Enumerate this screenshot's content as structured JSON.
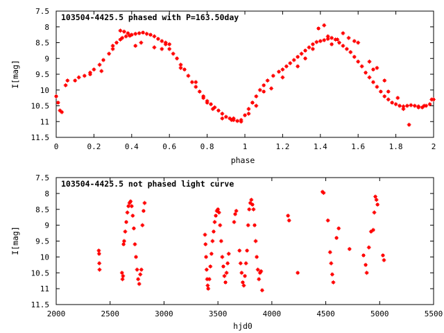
{
  "chart_data": [
    {
      "type": "scatter",
      "title": "103504-4425.5 phased with P=163.50day",
      "xlabel": "phase",
      "ylabel": "I[mag]",
      "xlim": [
        0,
        2
      ],
      "ylim": [
        11.5,
        7.5
      ],
      "y_inverted": true,
      "xticks": [
        "0",
        "0.2",
        "0.4",
        "0.6",
        "0.8",
        "1",
        "1.2",
        "1.4",
        "1.6",
        "1.8",
        "2"
      ],
      "yticks": [
        "7.5",
        "8",
        "8.5",
        "9",
        "9.5",
        "10",
        "10.5",
        "11",
        "11.5"
      ],
      "marker_color": "#ff0000",
      "series": [
        {
          "x": [
            0.0,
            0.01,
            0.02,
            0.03,
            0.05,
            0.06,
            0.1,
            0.12,
            0.15,
            0.18,
            0.2,
            0.23,
            0.25,
            0.28,
            0.3,
            0.32,
            0.34,
            0.35,
            0.37,
            0.39,
            0.4,
            0.42,
            0.44,
            0.46,
            0.48,
            0.5,
            0.52,
            0.54,
            0.56,
            0.58,
            0.6,
            0.62,
            0.64,
            0.66,
            0.68,
            0.7,
            0.72,
            0.74,
            0.76,
            0.78,
            0.8,
            0.82,
            0.84,
            0.86,
            0.88,
            0.9,
            0.92,
            0.94,
            0.96,
            0.98,
            1.0,
            1.02,
            1.04,
            1.06,
            1.08,
            1.1,
            1.12,
            1.15,
            1.18,
            1.2,
            1.22,
            1.24,
            1.26,
            1.28,
            1.3,
            1.32,
            1.34,
            1.36,
            1.38,
            1.4,
            1.42,
            1.44,
            1.46,
            1.48,
            1.5,
            1.52,
            1.54,
            1.56,
            1.58,
            1.6,
            1.62,
            1.64,
            1.66,
            1.68,
            1.7,
            1.72,
            1.74,
            1.76,
            1.78,
            1.8,
            1.82,
            1.84,
            1.86,
            1.88,
            1.9,
            1.92,
            1.94,
            1.96,
            1.98,
            2.0,
            0.34,
            0.36,
            0.38,
            0.42,
            0.45,
            0.52,
            0.56,
            0.6,
            0.74,
            0.78,
            0.8,
            0.83,
            0.88,
            0.93,
            0.98,
            1.04,
            1.1,
            1.14,
            1.2,
            1.28,
            1.36,
            1.39,
            1.42,
            1.44,
            1.46,
            1.49,
            1.55,
            1.58,
            1.6,
            1.66,
            1.7,
            1.76,
            1.81,
            1.87,
            1.92,
            0.3,
            0.24,
            0.18,
            0.58,
            0.66,
            0.94,
            1.02,
            1.06,
            1.32,
            1.52,
            1.68,
            1.74,
            1.84,
            1.95,
            1.99
          ],
          "y": [
            10.2,
            10.4,
            10.65,
            10.7,
            9.85,
            9.7,
            9.7,
            9.6,
            9.55,
            9.45,
            9.35,
            9.2,
            9.05,
            8.85,
            8.7,
            8.5,
            8.4,
            8.35,
            8.3,
            8.28,
            8.25,
            8.22,
            8.2,
            8.18,
            8.22,
            8.25,
            8.3,
            8.38,
            8.45,
            8.55,
            8.7,
            8.85,
            9.0,
            9.2,
            9.35,
            9.55,
            9.75,
            9.9,
            10.05,
            10.2,
            10.35,
            10.45,
            10.55,
            10.65,
            10.75,
            10.85,
            10.9,
            10.95,
            10.98,
            10.95,
            10.8,
            10.6,
            10.4,
            10.2,
            10.0,
            9.85,
            9.7,
            9.55,
            9.42,
            9.35,
            9.25,
            9.15,
            9.05,
            8.95,
            8.85,
            8.75,
            8.65,
            8.55,
            8.48,
            8.45,
            8.42,
            8.38,
            8.35,
            8.4,
            8.5,
            8.6,
            8.7,
            8.8,
            8.95,
            9.1,
            9.25,
            9.45,
            9.6,
            9.75,
            9.9,
            10.05,
            10.2,
            10.3,
            10.4,
            10.45,
            10.5,
            10.52,
            10.5,
            10.48,
            10.5,
            10.52,
            10.55,
            10.5,
            10.45,
            10.3,
            8.12,
            8.15,
            8.2,
            8.6,
            8.5,
            8.65,
            8.7,
            8.55,
            9.75,
            10.25,
            10.4,
            10.6,
            10.9,
            10.95,
            11.0,
            10.4,
            10.05,
            9.95,
            9.6,
            9.25,
            8.7,
            8.05,
            7.95,
            8.3,
            8.55,
            8.4,
            8.35,
            8.45,
            8.5,
            9.1,
            9.3,
            10.05,
            10.25,
            11.1,
            10.55,
            8.6,
            9.4,
            9.5,
            8.5,
            9.3,
            10.9,
            10.75,
            10.5,
            9.0,
            8.2,
            9.35,
            9.7,
            10.6,
            10.5,
            10.3
          ]
        }
      ]
    },
    {
      "type": "scatter",
      "title": "103504-4425.5 not phased light curve",
      "xlabel": "hjd0",
      "ylabel": "I[mag]",
      "xlim": [
        2000,
        5500
      ],
      "ylim": [
        11.5,
        7.5
      ],
      "y_inverted": true,
      "xticks": [
        "2000",
        "2500",
        "3000",
        "3500",
        "4000",
        "4500",
        "5000",
        "5500"
      ],
      "yticks": [
        "7.5",
        "8",
        "8.5",
        "9",
        "9.5",
        "10",
        "10.5",
        "11",
        "11.5"
      ],
      "marker_color": "#ff0000",
      "series": [
        {
          "x": [
            2395,
            2398,
            2400,
            2402,
            2610,
            2615,
            2620,
            2625,
            2630,
            2640,
            2650,
            2660,
            2670,
            2680,
            2690,
            2700,
            2710,
            2720,
            2730,
            2740,
            2750,
            2760,
            2770,
            2780,
            2790,
            2800,
            2810,
            2820,
            3380,
            3385,
            3390,
            3395,
            3400,
            3405,
            3410,
            3420,
            3430,
            3440,
            3450,
            3460,
            3470,
            3480,
            3490,
            3500,
            3510,
            3520,
            3530,
            3540,
            3550,
            3560,
            3570,
            3580,
            3590,
            3600,
            3650,
            3660,
            3670,
            3700,
            3710,
            3720,
            3730,
            3740,
            3750,
            3760,
            3770,
            3780,
            3790,
            3800,
            3810,
            3820,
            3830,
            3840,
            3850,
            3860,
            3870,
            3880,
            3890,
            3900,
            3910,
            4150,
            4160,
            4240,
            4470,
            4480,
            4520,
            4540,
            4550,
            4560,
            4570,
            4600,
            4620,
            4720,
            4850,
            4870,
            4880,
            4900,
            4920,
            4940,
            4950,
            4960,
            4970,
            4980,
            5030,
            5040
          ],
          "y": [
            9.8,
            9.9,
            10.2,
            10.4,
            10.5,
            10.7,
            10.6,
            9.6,
            9.5,
            9.2,
            8.9,
            8.6,
            8.4,
            8.3,
            8.25,
            8.4,
            8.7,
            9.1,
            9.6,
            10.0,
            10.4,
            10.7,
            10.85,
            10.55,
            10.4,
            9.0,
            8.55,
            8.3,
            9.3,
            9.6,
            10.0,
            10.4,
            10.7,
            10.9,
            11.0,
            10.7,
            10.3,
            9.9,
            9.5,
            9.2,
            8.9,
            8.7,
            8.55,
            8.5,
            8.6,
            9.0,
            9.5,
            10.0,
            10.3,
            10.6,
            10.8,
            10.5,
            10.2,
            9.9,
            8.9,
            8.65,
            8.55,
            9.8,
            10.2,
            10.5,
            10.8,
            10.9,
            10.6,
            10.2,
            9.8,
            9.0,
            8.5,
            8.3,
            8.2,
            8.35,
            8.5,
            9.0,
            9.5,
            10.0,
            10.4,
            10.7,
            10.5,
            10.45,
            11.05,
            8.7,
            8.85,
            10.5,
            7.95,
            7.98,
            8.85,
            9.85,
            10.2,
            10.55,
            10.8,
            9.4,
            9.1,
            9.75,
            9.95,
            10.25,
            10.5,
            9.7,
            9.2,
            9.15,
            8.6,
            8.1,
            8.2,
            8.35,
            9.95,
            10.1
          ]
        }
      ]
    }
  ]
}
